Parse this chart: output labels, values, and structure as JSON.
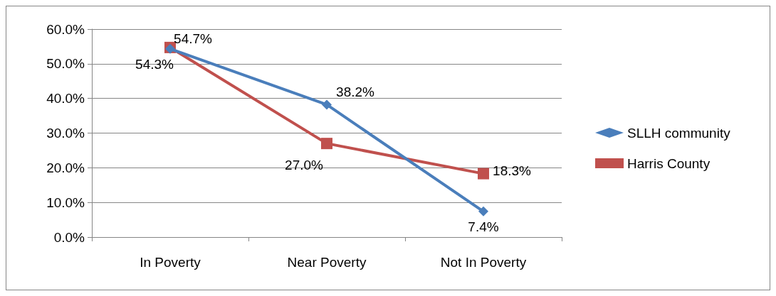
{
  "chart_data": {
    "type": "line",
    "categories": [
      "In Poverty",
      "Near Poverty",
      "Not In Poverty"
    ],
    "series": [
      {
        "name": "SLLH community",
        "color": "#4a7ebb",
        "marker": "diamond",
        "values": [
          54.3,
          38.2,
          7.4
        ],
        "value_labels": [
          "54.3%",
          "38.2%",
          "7.4%"
        ]
      },
      {
        "name": "Harris County",
        "color": "#c0504d",
        "marker": "square",
        "values": [
          54.7,
          27.0,
          18.3
        ],
        "value_labels": [
          "54.7%",
          "27.0%",
          "18.3%"
        ]
      }
    ],
    "ylim": [
      0,
      60
    ],
    "yticks": [
      {
        "value": 0,
        "label": "0.0%"
      },
      {
        "value": 10,
        "label": "10.0%"
      },
      {
        "value": 20,
        "label": "20.0%"
      },
      {
        "value": 30,
        "label": "30.0%"
      },
      {
        "value": 40,
        "label": "40.0%"
      },
      {
        "value": 50,
        "label": "50.0%"
      },
      {
        "value": 60,
        "label": "60.0%"
      }
    ],
    "grid": "y",
    "legend": "right",
    "line_style": "solid"
  }
}
